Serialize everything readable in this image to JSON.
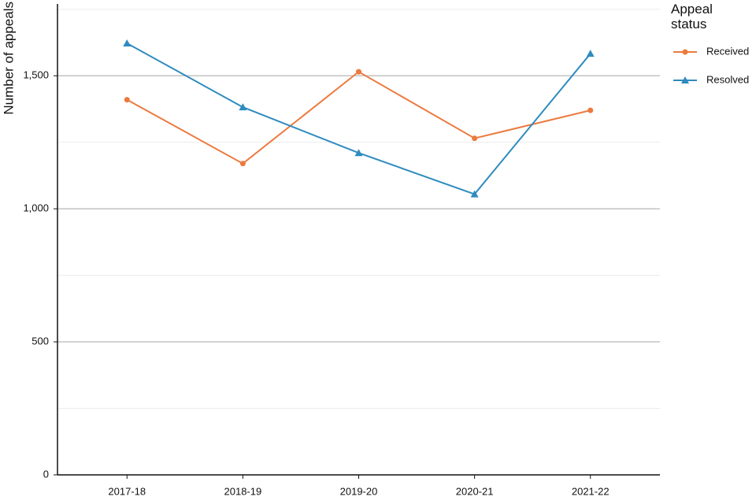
{
  "chart_data": {
    "type": "line",
    "y_label": "Number of appeals",
    "legend_title": "Appeal status",
    "legend_position": "right",
    "categories": [
      "2017-18",
      "2018-19",
      "2019-20",
      "2020-21",
      "2021-22"
    ],
    "series": [
      {
        "name": "Received",
        "color": "#ec7a3f",
        "marker": "circle",
        "values": [
          1410,
          1170,
          1515,
          1265,
          1370
        ]
      },
      {
        "name": "Resolved",
        "color": "#2f8bbf",
        "marker": "triangle",
        "values": [
          1622,
          1382,
          1210,
          1055,
          1583
        ]
      }
    ],
    "ylim": [
      0,
      1770
    ],
    "yticks": [
      0,
      {
        "value": 500,
        "label": "500"
      },
      {
        "value": 1000,
        "label": "1,000"
      },
      {
        "value": 1500,
        "label": "1,500"
      }
    ],
    "minor_yticks": [
      250,
      750,
      1250,
      1750
    ],
    "grid": true
  }
}
